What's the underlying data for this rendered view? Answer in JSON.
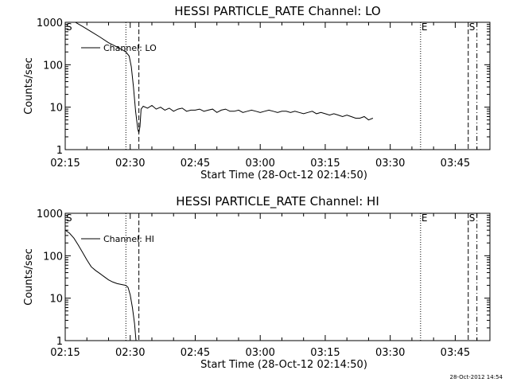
{
  "chart_data": [
    {
      "type": "line",
      "title": "HESSI PARTICLE_RATE Channel: LO",
      "xlabel": "Start Time (28-Oct-12 02:14:50)",
      "ylabel": "Counts/sec",
      "yscale": "log",
      "ylim": [
        1,
        1000
      ],
      "xlim": [
        "02:15",
        "03:53"
      ],
      "x_ticks": [
        "02:15",
        "02:30",
        "02:45",
        "03:00",
        "03:15",
        "03:30",
        "03:45"
      ],
      "y_ticks": [
        "1",
        "10",
        "100",
        "1000"
      ],
      "legend": "top-left",
      "series": [
        {
          "name": "Channel: LO",
          "x": [
            "02:15",
            "02:17",
            "02:19",
            "02:21",
            "02:23",
            "02:25",
            "02:27",
            "02:28",
            "02:29",
            "02:29:45",
            "02:30:15",
            "02:30:45",
            "02:31:15",
            "02:31:45",
            "02:32:00",
            "02:32:15",
            "02:32:30",
            "02:33",
            "02:34",
            "02:35",
            "02:36",
            "02:37",
            "02:38",
            "02:39",
            "02:40",
            "02:41",
            "02:42",
            "02:43",
            "02:44",
            "02:45",
            "02:46",
            "02:47",
            "02:48",
            "02:49",
            "02:50",
            "02:51",
            "02:52",
            "02:53",
            "02:54",
            "02:55",
            "02:56",
            "02:57",
            "02:58",
            "02:59",
            "03:00",
            "03:01",
            "03:02",
            "03:03",
            "03:04",
            "03:05",
            "03:06",
            "03:07",
            "03:08",
            "03:09",
            "03:10",
            "03:11",
            "03:12",
            "03:13",
            "03:14",
            "03:15",
            "03:16",
            "03:17",
            "03:18",
            "03:19",
            "03:20",
            "03:21",
            "03:22",
            "03:23",
            "03:24",
            "03:25",
            "03:26"
          ],
          "y": [
            1150,
            1050,
            800,
            600,
            450,
            330,
            260,
            230,
            200,
            160,
            90,
            30,
            8,
            3,
            2.5,
            3.5,
            9,
            10.5,
            9.5,
            11,
            9,
            10,
            8.5,
            9.5,
            8,
            9,
            9.5,
            8,
            8.5,
            8.5,
            9,
            8,
            8.5,
            9,
            7.5,
            8.5,
            9,
            8,
            8,
            8.5,
            7.5,
            8,
            8.5,
            8,
            7.5,
            8,
            8.5,
            8,
            7.5,
            8,
            8,
            7.5,
            8,
            7.5,
            7,
            7.5,
            8,
            7,
            7.5,
            7,
            6.5,
            7,
            6.5,
            6,
            6.5,
            6,
            5.5,
            5.5,
            6,
            5,
            5.5
          ]
        }
      ],
      "markers": [
        {
          "label": "S",
          "time": "02:15",
          "style": "none"
        },
        {
          "label": "",
          "time": "02:29",
          "style": "dotted"
        },
        {
          "label": "",
          "time": "02:32",
          "style": "dashed"
        },
        {
          "label": "E",
          "time": "03:37",
          "style": "dotted"
        },
        {
          "label": "S",
          "time": "03:48",
          "style": "dashed"
        },
        {
          "label": "",
          "time": "03:50",
          "style": "dash-dot"
        }
      ]
    },
    {
      "type": "line",
      "title": "HESSI PARTICLE_RATE Channel: HI",
      "xlabel": "Start Time (28-Oct-12 02:14:50)",
      "ylabel": "Counts/sec",
      "yscale": "log",
      "ylim": [
        1,
        1000
      ],
      "xlim": [
        "02:15",
        "03:53"
      ],
      "x_ticks": [
        "02:15",
        "02:30",
        "02:45",
        "03:00",
        "03:15",
        "03:30",
        "03:45"
      ],
      "y_ticks": [
        "1",
        "10",
        "100",
        "1000"
      ],
      "legend": "top-left",
      "series": [
        {
          "name": "Channel: HI",
          "x": [
            "02:15",
            "02:16",
            "02:17",
            "02:18",
            "02:19",
            "02:20",
            "02:21",
            "02:22",
            "02:23",
            "02:24",
            "02:25",
            "02:26",
            "02:27",
            "02:28",
            "02:29",
            "02:29:30",
            "02:30",
            "02:30:30",
            "02:31",
            "02:31:20"
          ],
          "y": [
            400,
            340,
            260,
            180,
            120,
            80,
            55,
            45,
            38,
            32,
            27,
            24,
            22,
            21,
            20,
            18,
            12,
            6,
            2.5,
            1
          ]
        }
      ],
      "markers": [
        {
          "label": "S",
          "time": "02:15",
          "style": "none"
        },
        {
          "label": "",
          "time": "02:29",
          "style": "dotted"
        },
        {
          "label": "",
          "time": "02:32",
          "style": "dashed"
        },
        {
          "label": "E",
          "time": "03:37",
          "style": "dotted"
        },
        {
          "label": "S",
          "time": "03:48",
          "style": "dashed"
        },
        {
          "label": "",
          "time": "03:50",
          "style": "dash-dot"
        }
      ]
    }
  ],
  "footer": {
    "timestamp": "28-Oct-2012 14:54"
  }
}
